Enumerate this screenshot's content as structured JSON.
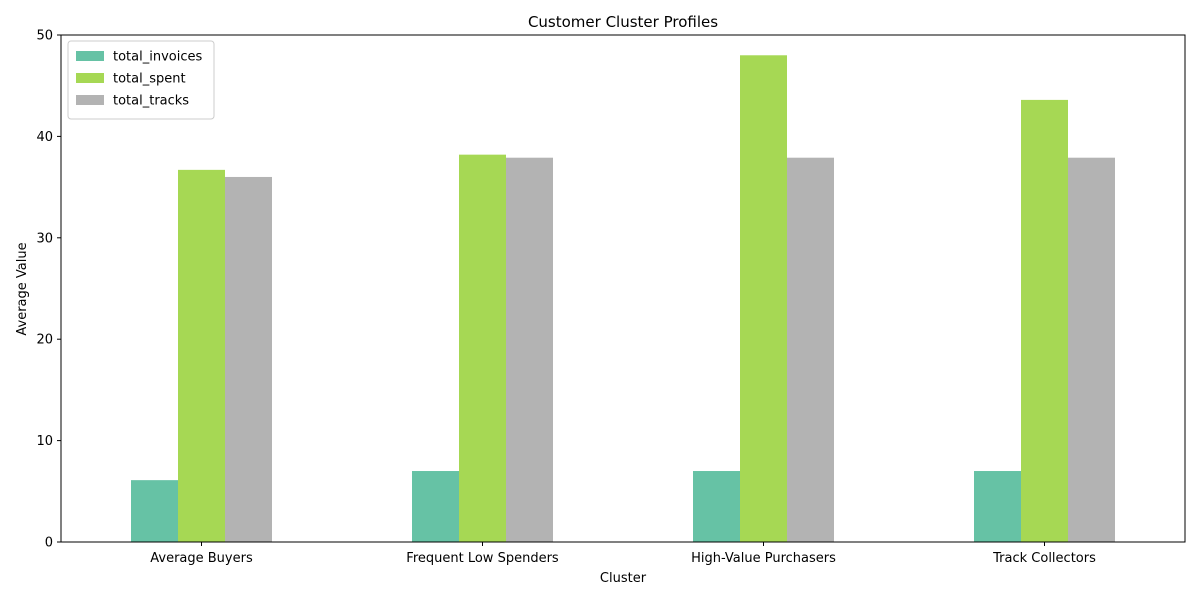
{
  "chart_data": {
    "type": "bar",
    "title": "Customer Cluster Profiles",
    "xlabel": "Cluster",
    "ylabel": "Average Value",
    "categories": [
      "Average Buyers",
      "Frequent Low Spenders",
      "High-Value Purchasers",
      "Track Collectors"
    ],
    "series": [
      {
        "name": "total_invoices",
        "color": "#66c2a5",
        "values": [
          6.1,
          7.0,
          7.0,
          7.0
        ]
      },
      {
        "name": "total_spent",
        "color": "#a6d854",
        "values": [
          36.7,
          38.2,
          48.0,
          43.6
        ]
      },
      {
        "name": "total_tracks",
        "color": "#b3b3b3",
        "values": [
          36.0,
          37.9,
          37.9,
          37.9
        ]
      }
    ],
    "ylim": [
      0,
      50
    ],
    "yticks": [
      0,
      10,
      20,
      30,
      40,
      50
    ],
    "grid": false,
    "legend_position": "top-left"
  }
}
